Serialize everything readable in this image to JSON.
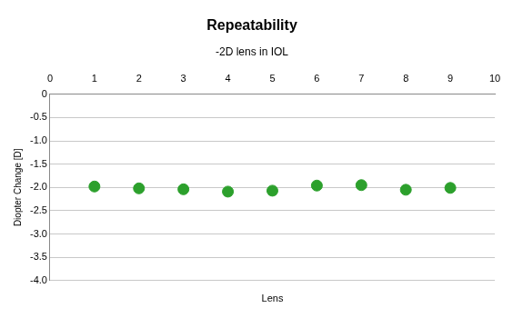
{
  "chart_data": {
    "type": "scatter",
    "title": "Repeatability",
    "subtitle": "-2D lens in IOL",
    "x_label": "Lens",
    "y_label": "Diopter Change [D]",
    "x": [
      1,
      2,
      3,
      4,
      5,
      6,
      7,
      8,
      9
    ],
    "values": [
      -1.98,
      -2.02,
      -2.04,
      -2.09,
      -2.07,
      -1.96,
      -1.95,
      -2.05,
      -2.01
    ],
    "color": "#2ca02c",
    "marker": "circle",
    "xlim": [
      0,
      10
    ],
    "xticks": [
      0,
      1,
      2,
      3,
      4,
      5,
      6,
      7,
      8,
      9,
      10
    ],
    "ylim": [
      -4,
      0
    ],
    "yticks": [
      0,
      -0.5,
      -1,
      -1.5,
      -2,
      -2.5,
      -3,
      -3.5,
      -4
    ],
    "grid": true
  }
}
